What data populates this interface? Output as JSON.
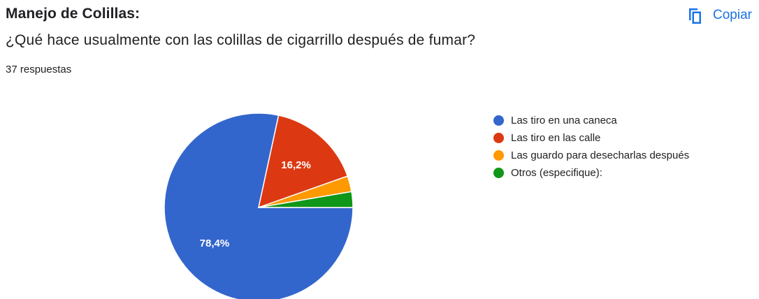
{
  "header": {
    "section_title": "Manejo de Colillas:",
    "question": "¿Qué hace usualmente con las colillas de cigarrillo después de fumar?",
    "response_count": "37 respuestas",
    "copy_label": "Copiar",
    "copy_icon": "copy-icon",
    "accent_color": "#1a73e8"
  },
  "chart_data": {
    "type": "pie",
    "title": "",
    "legend_position": "right",
    "slices": [
      {
        "label": "Las tiro en una caneca",
        "value": 78.4,
        "display": "78,4%",
        "color": "#3366cc"
      },
      {
        "label": "Las tiro en las calle",
        "value": 16.2,
        "display": "16,2%",
        "color": "#dc3912"
      },
      {
        "label": "Las guardo para desecharlas después",
        "value": 2.7,
        "display": "",
        "color": "#ff9900"
      },
      {
        "label": "Otros (especifique):",
        "value": 2.7,
        "display": "",
        "color": "#109618"
      }
    ]
  }
}
